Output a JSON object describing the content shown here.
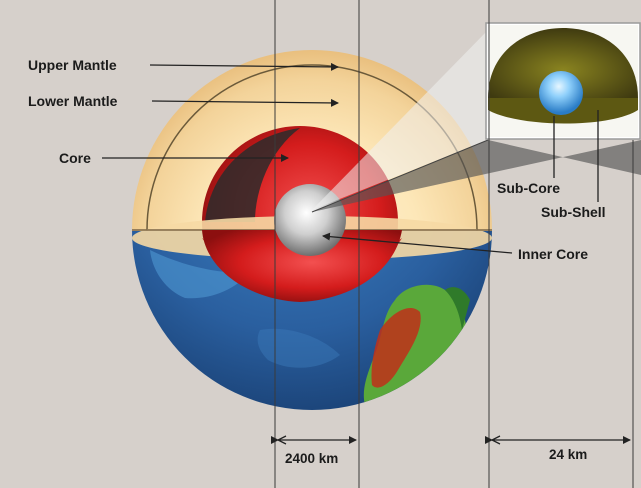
{
  "labels": {
    "upper_mantle": "Upper Mantle",
    "lower_mantle": "Lower Mantle",
    "core": "Core",
    "inner_core": "Inner Core",
    "sub_core": "Sub-Core",
    "sub_shell": "Sub-Shell"
  },
  "dimensions": {
    "core_width": "2400 km",
    "inset_width": "24 km"
  },
  "colors": {
    "background": "#d6d0cb",
    "mantle": "#f6d9a4",
    "outer_core": "#d01b1b",
    "inner_core": "#e8e8e8",
    "ocean": "#2b66a8",
    "land": "#5aa83a",
    "sub_shell": "#6f6a1a",
    "sub_core": "#5cb2ee"
  }
}
